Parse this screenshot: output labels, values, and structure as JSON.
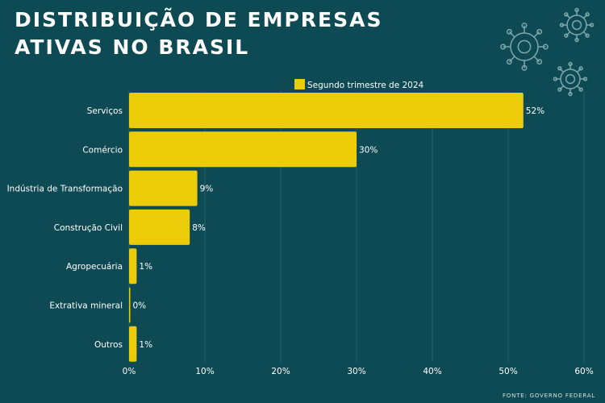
{
  "title_line1": "DISTRIBUIÇÃO DE EMPRESAS",
  "title_line2": "ATIVAS NO BRASIL",
  "source": "FONTE: GOVERNO FEDERAL",
  "colors": {
    "background": "#0e4a53",
    "bar": "#eccb08",
    "text": "#ffffff",
    "gridline": "#2e6870",
    "gear_icon": "#7fa8ad"
  },
  "icons": [
    "gear-icon",
    "gear-icon",
    "gear-icon"
  ],
  "chart_data": {
    "type": "bar",
    "orientation": "horizontal",
    "categories": [
      "Serviços",
      "Comércio",
      "Indústria de Transformação",
      "Construção Civil",
      "Agropecuária",
      "Extrativa mineral",
      "Outros"
    ],
    "series": [
      {
        "name": "Segundo trimestre de 2024",
        "values": [
          52,
          30,
          9,
          8,
          1,
          0,
          1
        ]
      }
    ],
    "value_labels": [
      "52%",
      "30%",
      "9%",
      "8%",
      "1%",
      "0%",
      "1%"
    ],
    "xlim": [
      0,
      60
    ],
    "x_ticks": [
      "0%",
      "10%",
      "20%",
      "30%",
      "40%",
      "50%",
      "60%"
    ],
    "grid": true,
    "legend_position": "top-center"
  }
}
